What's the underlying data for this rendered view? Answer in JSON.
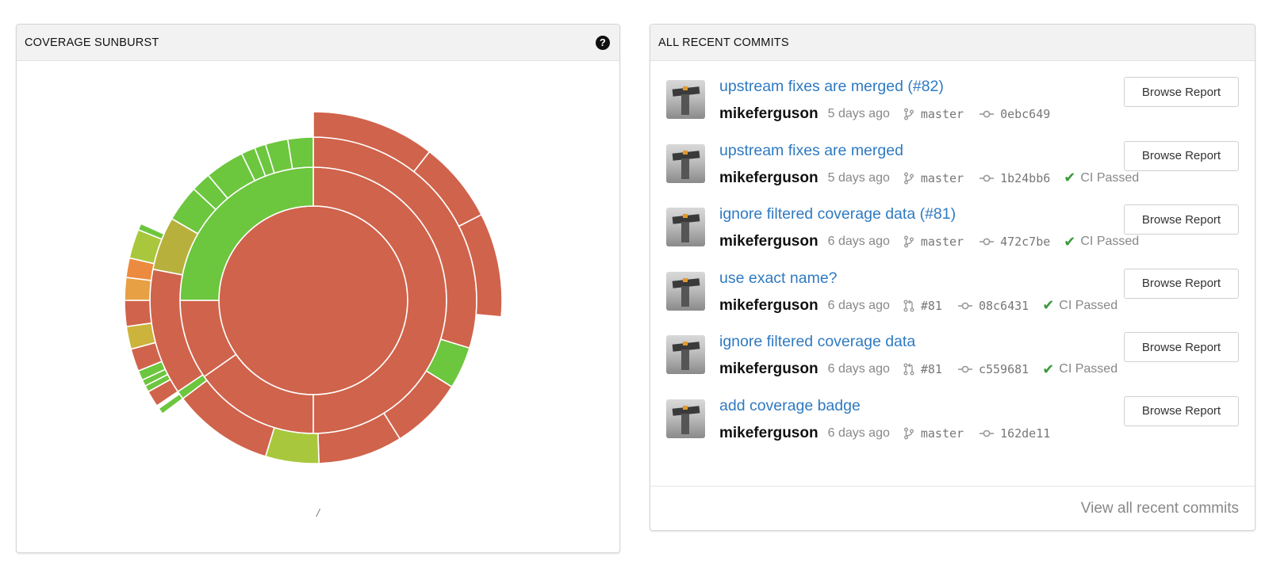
{
  "left_panel": {
    "title": "COVERAGE SUNBURST",
    "help_icon": "question-circle-icon",
    "path_label": "/"
  },
  "right_panel": {
    "title": "ALL RECENT COMMITS",
    "view_all": "View all recent commits",
    "commits": [
      {
        "title": "upstream fixes are merged (#82)",
        "author": "mikeferguson",
        "time": "5 days ago",
        "ref_type": "branch",
        "ref": "master",
        "sha": "0ebc649",
        "ci": "",
        "button": "Browse Report"
      },
      {
        "title": "upstream fixes are merged",
        "author": "mikeferguson",
        "time": "5 days ago",
        "ref_type": "branch",
        "ref": "master",
        "sha": "1b24bb6",
        "ci": "CI Passed",
        "button": "Browse Report"
      },
      {
        "title": "ignore filtered coverage data (#81)",
        "author": "mikeferguson",
        "time": "6 days ago",
        "ref_type": "branch",
        "ref": "master",
        "sha": "472c7be",
        "ci": "CI Passed",
        "button": "Browse Report"
      },
      {
        "title": "use exact name?",
        "author": "mikeferguson",
        "time": "6 days ago",
        "ref_type": "pull-request",
        "ref": "#81",
        "sha": "08c6431",
        "ci": "CI Passed",
        "button": "Browse Report"
      },
      {
        "title": "ignore filtered coverage data",
        "author": "mikeferguson",
        "time": "6 days ago",
        "ref_type": "pull-request",
        "ref": "#81",
        "sha": "c559681",
        "ci": "CI Passed",
        "button": "Browse Report"
      },
      {
        "title": "add coverage badge",
        "author": "mikeferguson",
        "time": "6 days ago",
        "ref_type": "branch",
        "ref": "master",
        "sha": "162de11",
        "ci": "",
        "button": "Browse Report"
      }
    ]
  },
  "colors": {
    "red": "#d0634b",
    "green": "#6cc63e",
    "olive": "#a6bb3d",
    "khaki": "#b8b03c",
    "yellow_green": "#a9c73d",
    "orange": "#ec8b3f",
    "amber": "#e8a044",
    "mustard": "#ccb33b",
    "link": "#2f7ac1",
    "ci_check": "#3a9a3a"
  },
  "sunburst": {
    "rings": [
      {
        "level": 1,
        "segments": [
          {
            "start": 0,
            "end": 360,
            "color": "red"
          }
        ]
      },
      {
        "level": 2,
        "segments": [
          {
            "start": 0,
            "end": 180,
            "color": "red"
          },
          {
            "start": 180,
            "end": 235,
            "color": "red"
          },
          {
            "start": 235,
            "end": 270,
            "color": "red"
          },
          {
            "start": 270,
            "end": 360,
            "color": "green"
          }
        ]
      },
      {
        "level": 3,
        "segments": [
          {
            "start": 0,
            "end": 107,
            "color": "red"
          },
          {
            "start": 107,
            "end": 122,
            "color": "green"
          },
          {
            "start": 122,
            "end": 148,
            "color": "red"
          },
          {
            "start": 148,
            "end": 178,
            "color": "red"
          },
          {
            "start": 178,
            "end": 197,
            "color": "yellow_green"
          },
          {
            "start": 197,
            "end": 233,
            "color": "red"
          },
          {
            "start": 233,
            "end": 236,
            "color": "green"
          },
          {
            "start": 236,
            "end": 281,
            "color": "red"
          },
          {
            "start": 281,
            "end": 300,
            "color": "khaki"
          },
          {
            "start": 300,
            "end": 313,
            "color": "green"
          },
          {
            "start": 313,
            "end": 320,
            "color": "green"
          },
          {
            "start": 320,
            "end": 334,
            "color": "green"
          },
          {
            "start": 334,
            "end": 339,
            "color": "green"
          },
          {
            "start": 339,
            "end": 343,
            "color": "green"
          },
          {
            "start": 343,
            "end": 351,
            "color": "green"
          },
          {
            "start": 351,
            "end": 360,
            "color": "green"
          }
        ]
      },
      {
        "level": 4,
        "segments": [
          {
            "start": 0,
            "end": 38,
            "color": "red"
          },
          {
            "start": 38,
            "end": 63,
            "color": "red"
          },
          {
            "start": 63,
            "end": 95,
            "color": "red"
          },
          {
            "start": 233,
            "end": 235,
            "color": "green"
          },
          {
            "start": 236,
            "end": 241,
            "color": "red"
          },
          {
            "start": 241,
            "end": 243,
            "color": "green"
          },
          {
            "start": 243,
            "end": 245,
            "color": "green"
          },
          {
            "start": 245,
            "end": 248,
            "color": "green"
          },
          {
            "start": 248,
            "end": 255,
            "color": "red"
          },
          {
            "start": 255,
            "end": 262,
            "color": "mustard"
          },
          {
            "start": 262,
            "end": 270,
            "color": "red"
          },
          {
            "start": 270,
            "end": 277,
            "color": "amber"
          },
          {
            "start": 277,
            "end": 283,
            "color": "orange"
          },
          {
            "start": 283,
            "end": 292,
            "color": "yellow_green"
          },
          {
            "start": 292,
            "end": 294,
            "color": "green"
          }
        ]
      }
    ]
  }
}
